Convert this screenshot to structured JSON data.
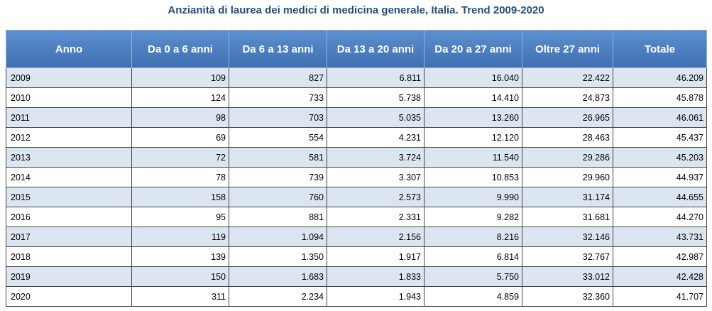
{
  "title": "Anzianità di laurea dei medici di medicina generale, Italia. Trend 2009-2020",
  "table": {
    "columns": [
      "Anno",
      "Da 0 a 6 anni",
      "Da 6 a 13 anni",
      "Da 13 a 20 anni",
      "Da 20 a 27 anni",
      "Oltre 27 anni",
      "Totale"
    ],
    "rows": [
      [
        "2009",
        "109",
        "827",
        "6.811",
        "16.040",
        "22.422",
        "46.209"
      ],
      [
        "2010",
        "124",
        "733",
        "5.738",
        "14.410",
        "24.873",
        "45.878"
      ],
      [
        "2011",
        "98",
        "703",
        "5.035",
        "13.260",
        "26.965",
        "46.061"
      ],
      [
        "2012",
        "69",
        "554",
        "4.231",
        "12.120",
        "28.463",
        "45.437"
      ],
      [
        "2013",
        "72",
        "581",
        "3.724",
        "11.540",
        "29.286",
        "45.203"
      ],
      [
        "2014",
        "78",
        "739",
        "3.307",
        "10.853",
        "29.960",
        "44.937"
      ],
      [
        "2015",
        "158",
        "760",
        "2.573",
        "9.990",
        "31.174",
        "44.655"
      ],
      [
        "2016",
        "95",
        "881",
        "2.331",
        "9.282",
        "31.681",
        "44.270"
      ],
      [
        "2017",
        "119",
        "1.094",
        "2.156",
        "8.216",
        "32.146",
        "43.731"
      ],
      [
        "2018",
        "139",
        "1.350",
        "1.917",
        "6.814",
        "32.767",
        "42.987"
      ],
      [
        "2019",
        "150",
        "1.683",
        "1.833",
        "5.750",
        "33.012",
        "42.428"
      ],
      [
        "2020",
        "311",
        "2.234",
        "1.943",
        "4.859",
        "32.360",
        "41.707"
      ]
    ]
  }
}
